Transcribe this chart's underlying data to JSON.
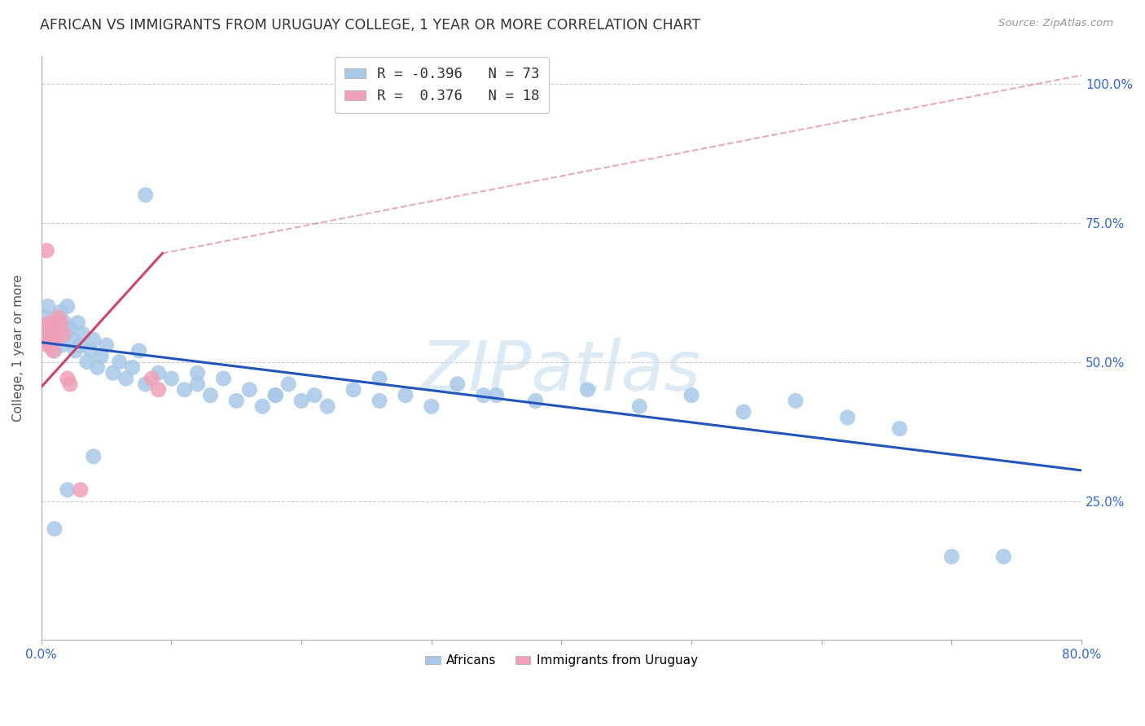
{
  "title": "AFRICAN VS IMMIGRANTS FROM URUGUAY COLLEGE, 1 YEAR OR MORE CORRELATION CHART",
  "source": "Source: ZipAtlas.com",
  "ylabel": "College, 1 year or more",
  "xlim": [
    0.0,
    0.8
  ],
  "ylim": [
    0.0,
    1.05
  ],
  "xtick_labels": [
    "0.0%",
    "",
    "",
    "",
    "",
    "",
    "",
    "",
    "80.0%"
  ],
  "xtick_values": [
    0.0,
    0.1,
    0.2,
    0.3,
    0.4,
    0.5,
    0.6,
    0.7,
    0.8
  ],
  "ytick_labels": [
    "25.0%",
    "50.0%",
    "75.0%",
    "100.0%"
  ],
  "ytick_values": [
    0.25,
    0.5,
    0.75,
    1.0
  ],
  "legend_r_blue": "-0.396",
  "legend_n_blue": "73",
  "legend_r_pink": "0.376",
  "legend_n_pink": "18",
  "legend_label_blue": "Africans",
  "legend_label_pink": "Immigrants from Uruguay",
  "blue_color": "#a8c8e8",
  "pink_color": "#f0a0b8",
  "line_blue_color": "#2255bb",
  "line_pink_color": "#cc4466",
  "watermark": "ZIPatlas",
  "background_color": "#ffffff",
  "grid_color": "#cccccc",
  "blue_x": [
    0.003,
    0.004,
    0.005,
    0.006,
    0.007,
    0.008,
    0.009,
    0.01,
    0.011,
    0.012,
    0.013,
    0.014,
    0.015,
    0.016,
    0.018,
    0.019,
    0.02,
    0.022,
    0.024,
    0.026,
    0.028,
    0.03,
    0.032,
    0.035,
    0.038,
    0.04,
    0.043,
    0.046,
    0.05,
    0.055,
    0.06,
    0.065,
    0.07,
    0.075,
    0.08,
    0.09,
    0.1,
    0.11,
    0.12,
    0.13,
    0.14,
    0.15,
    0.16,
    0.17,
    0.18,
    0.19,
    0.2,
    0.21,
    0.22,
    0.24,
    0.26,
    0.28,
    0.3,
    0.32,
    0.35,
    0.38,
    0.42,
    0.46,
    0.5,
    0.54,
    0.58,
    0.62,
    0.66,
    0.7,
    0.74,
    0.34,
    0.26,
    0.18,
    0.12,
    0.08,
    0.04,
    0.02,
    0.01
  ],
  "blue_y": [
    0.58,
    0.55,
    0.6,
    0.53,
    0.56,
    0.54,
    0.57,
    0.52,
    0.55,
    0.58,
    0.54,
    0.56,
    0.59,
    0.53,
    0.57,
    0.55,
    0.6,
    0.56,
    0.54,
    0.52,
    0.57,
    0.53,
    0.55,
    0.5,
    0.52,
    0.54,
    0.49,
    0.51,
    0.53,
    0.48,
    0.5,
    0.47,
    0.49,
    0.52,
    0.46,
    0.48,
    0.47,
    0.45,
    0.46,
    0.44,
    0.47,
    0.43,
    0.45,
    0.42,
    0.44,
    0.46,
    0.43,
    0.44,
    0.42,
    0.45,
    0.43,
    0.44,
    0.42,
    0.46,
    0.44,
    0.43,
    0.45,
    0.42,
    0.44,
    0.41,
    0.43,
    0.4,
    0.38,
    0.15,
    0.15,
    0.44,
    0.47,
    0.44,
    0.48,
    0.8,
    0.33,
    0.27,
    0.2
  ],
  "pink_x": [
    0.003,
    0.004,
    0.005,
    0.006,
    0.007,
    0.008,
    0.009,
    0.01,
    0.011,
    0.013,
    0.015,
    0.017,
    0.02,
    0.022,
    0.03,
    0.085,
    0.09,
    0.004
  ],
  "pink_y": [
    0.54,
    0.56,
    0.53,
    0.57,
    0.55,
    0.54,
    0.52,
    0.56,
    0.54,
    0.58,
    0.57,
    0.55,
    0.47,
    0.46,
    0.27,
    0.47,
    0.45,
    0.7
  ],
  "blue_line_x0": 0.0,
  "blue_line_y0": 0.535,
  "blue_line_x1": 0.8,
  "blue_line_y1": 0.305,
  "pink_line_solid_x0": 0.0,
  "pink_line_solid_y0": 0.455,
  "pink_line_solid_x1": 0.093,
  "pink_line_solid_y1": 0.695,
  "pink_line_dashed_x0": 0.093,
  "pink_line_dashed_y0": 0.695,
  "pink_line_dashed_x1": 0.8,
  "pink_line_dashed_y1": 1.015
}
